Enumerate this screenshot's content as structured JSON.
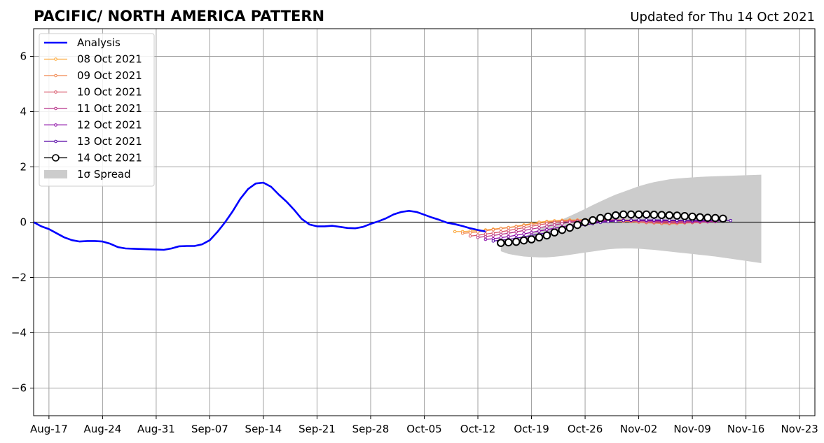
{
  "chart_data": {
    "type": "line",
    "title": "PACIFIC/ NORTH AMERICA PATTERN",
    "updated": "Updated for Thu 14 Oct 2021",
    "ylim": [
      -7,
      7
    ],
    "yticks": [
      -6,
      -4,
      -2,
      0,
      2,
      4,
      6
    ],
    "ytick_labels": [
      "−6",
      "−4",
      "−2",
      "0",
      "2",
      "4",
      "6"
    ],
    "xlim": [
      "2021-08-15",
      "2021-11-25"
    ],
    "xticks": [
      "2021-08-17",
      "2021-08-24",
      "2021-08-31",
      "2021-09-07",
      "2021-09-14",
      "2021-09-21",
      "2021-09-28",
      "2021-10-05",
      "2021-10-12",
      "2021-10-19",
      "2021-10-26",
      "2021-11-02",
      "2021-11-09",
      "2021-11-16",
      "2021-11-23"
    ],
    "xtick_labels": [
      "Aug-17",
      "Aug-24",
      "Aug-31",
      "Sep-07",
      "Sep-14",
      "Sep-21",
      "Sep-28",
      "Oct-05",
      "Oct-12",
      "Oct-19",
      "Oct-26",
      "Nov-02",
      "Nov-09",
      "Nov-16",
      "Nov-23"
    ],
    "grid": true,
    "legend_placement": "top-left",
    "analysis": {
      "name": "Analysis",
      "color": "#0000ff",
      "start": "2021-08-15",
      "values": [
        0.0,
        -0.15,
        -0.25,
        -0.4,
        -0.55,
        -0.65,
        -0.7,
        -0.68,
        -0.68,
        -0.7,
        -0.78,
        -0.9,
        -0.95,
        -0.96,
        -0.97,
        -0.98,
        -0.99,
        -1.0,
        -0.95,
        -0.87,
        -0.86,
        -0.86,
        -0.8,
        -0.65,
        -0.35,
        0.0,
        0.4,
        0.85,
        1.2,
        1.4,
        1.43,
        1.28,
        1.0,
        0.75,
        0.45,
        0.12,
        -0.08,
        -0.15,
        -0.15,
        -0.13,
        -0.17,
        -0.21,
        -0.22,
        -0.17,
        -0.06,
        0.03,
        0.14,
        0.28,
        0.37,
        0.41,
        0.37,
        0.27,
        0.17,
        0.08,
        -0.02,
        -0.07,
        -0.14,
        -0.22,
        -0.28,
        -0.34
      ]
    },
    "forecasts": [
      {
        "name": "08 Oct 2021",
        "color": "#fca636",
        "start": "2021-10-09",
        "values": [
          -0.34,
          -0.34,
          -0.32,
          -0.31,
          -0.28,
          -0.25,
          -0.22,
          -0.19,
          -0.15,
          -0.1,
          -0.05,
          0.0,
          0.03,
          0.05,
          0.07,
          0.08,
          0.08,
          0.09,
          0.09,
          0.09,
          0.09,
          0.08,
          0.08,
          0.07,
          0.06,
          0.05,
          0.04,
          0.03,
          0.03,
          0.02,
          0.02,
          0.02
        ]
      },
      {
        "name": "09 Oct 2021",
        "color": "#f0874f",
        "start": "2021-10-10",
        "values": [
          -0.4,
          -0.38,
          -0.35,
          -0.31,
          -0.27,
          -0.23,
          -0.2,
          -0.16,
          -0.12,
          -0.08,
          -0.04,
          0.0,
          0.03,
          0.05,
          0.06,
          0.07,
          0.08,
          0.08,
          0.07,
          0.06,
          0.05,
          0.03,
          0.02,
          0.0,
          -0.02,
          -0.03,
          -0.05,
          -0.06,
          -0.05,
          -0.03,
          -0.02,
          -0.01
        ]
      },
      {
        "name": "10 Oct 2021",
        "color": "#d8576b",
        "start": "2021-10-11",
        "values": [
          -0.5,
          -0.47,
          -0.43,
          -0.39,
          -0.35,
          -0.3,
          -0.25,
          -0.2,
          -0.15,
          -0.1,
          -0.05,
          -0.01,
          0.02,
          0.04,
          0.05,
          0.06,
          0.07,
          0.07,
          0.06,
          0.06,
          0.05,
          0.04,
          0.02,
          0.0,
          -0.01,
          -0.02,
          -0.03,
          -0.02,
          -0.01,
          -0.01,
          0.0,
          0.01
        ]
      },
      {
        "name": "11 Oct 2021",
        "color": "#b83289",
        "start": "2021-10-12",
        "values": [
          -0.55,
          -0.52,
          -0.48,
          -0.44,
          -0.4,
          -0.35,
          -0.3,
          -0.25,
          -0.2,
          -0.15,
          -0.1,
          -0.05,
          0.0,
          0.03,
          0.05,
          0.07,
          0.08,
          0.08,
          0.08,
          0.07,
          0.06,
          0.05,
          0.04,
          0.03,
          0.02,
          0.01,
          0.0,
          0.0,
          0.01,
          0.01,
          0.02,
          0.02
        ]
      },
      {
        "name": "12 Oct 2021",
        "color": "#8b0aa5",
        "start": "2021-10-13",
        "values": [
          -0.62,
          -0.6,
          -0.56,
          -0.52,
          -0.47,
          -0.42,
          -0.37,
          -0.32,
          -0.27,
          -0.22,
          -0.17,
          -0.12,
          -0.07,
          -0.03,
          0.0,
          0.03,
          0.05,
          0.06,
          0.07,
          0.07,
          0.07,
          0.06,
          0.06,
          0.05,
          0.05,
          0.04,
          0.04,
          0.04,
          0.04,
          0.04,
          0.04,
          0.04
        ]
      },
      {
        "name": "13 Oct 2021",
        "color": "#5302a3",
        "start": "2021-10-14",
        "values": [
          -0.68,
          -0.65,
          -0.62,
          -0.58,
          -0.53,
          -0.48,
          -0.43,
          -0.38,
          -0.32,
          -0.27,
          -0.21,
          -0.15,
          -0.1,
          -0.05,
          -0.01,
          0.02,
          0.04,
          0.06,
          0.07,
          0.08,
          0.08,
          0.08,
          0.08,
          0.07,
          0.07,
          0.06,
          0.06,
          0.06,
          0.06,
          0.06,
          0.06,
          0.06
        ]
      },
      {
        "name": "14 Oct 2021",
        "color": "#000000",
        "start": "2021-10-15",
        "marker": "open-circle",
        "values": [
          -0.75,
          -0.73,
          -0.71,
          -0.66,
          -0.62,
          -0.55,
          -0.48,
          -0.37,
          -0.28,
          -0.2,
          -0.1,
          0.0,
          0.07,
          0.15,
          0.2,
          0.25,
          0.28,
          0.28,
          0.28,
          0.28,
          0.27,
          0.26,
          0.25,
          0.24,
          0.22,
          0.2,
          0.18,
          0.16,
          0.15,
          0.13
        ]
      }
    ],
    "spread": {
      "name": "1σ Spread",
      "color": "#cccccc",
      "start": "2021-10-15",
      "upper": [
        -0.75,
        -0.7,
        -0.62,
        -0.52,
        -0.4,
        -0.25,
        -0.12,
        0.0,
        0.1,
        0.22,
        0.35,
        0.48,
        0.62,
        0.75,
        0.88,
        1.0,
        1.1,
        1.2,
        1.3,
        1.38,
        1.45,
        1.5,
        1.55,
        1.58,
        1.6,
        1.62,
        1.64,
        1.65,
        1.66,
        1.67,
        1.68,
        1.69,
        1.7,
        1.71,
        1.72
      ],
      "lower": [
        -1.05,
        -1.15,
        -1.2,
        -1.24,
        -1.26,
        -1.27,
        -1.27,
        -1.25,
        -1.22,
        -1.18,
        -1.14,
        -1.1,
        -1.06,
        -1.02,
        -0.98,
        -0.96,
        -0.95,
        -0.95,
        -0.96,
        -0.98,
        -1.0,
        -1.03,
        -1.06,
        -1.09,
        -1.12,
        -1.15,
        -1.18,
        -1.21,
        -1.24,
        -1.28,
        -1.32,
        -1.36,
        -1.4,
        -1.44,
        -1.48
      ]
    }
  }
}
